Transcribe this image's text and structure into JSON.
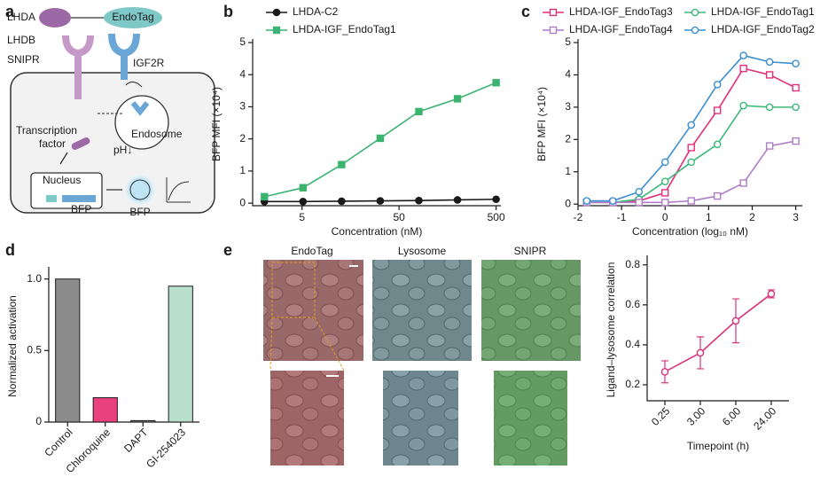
{
  "diagram": {
    "panel": "a",
    "ligand": "LHDA",
    "tag": "EndoTag",
    "receptor_part": "LHDB",
    "receptor": "SNIPR",
    "tag_receptor": "IGF2R",
    "tf_line1": "Transcription",
    "tf_line2": "factor",
    "endosome": "Endosome",
    "ph": "pH↓",
    "nucleus": "Nucleus",
    "gene": "BFP",
    "protein": "BFP"
  },
  "images": {
    "panel": "e",
    "labels": [
      "EndoTag",
      "Lysosome",
      "SNIPR"
    ]
  },
  "chart_data": [
    {
      "type": "line",
      "panel": "b",
      "xlabel": "Concentration (nM)",
      "ylabel": "BFP MFI (×10⁴)",
      "xscale": "log",
      "x": [
        2.05,
        5.12,
        12.8,
        32,
        80,
        200,
        500
      ],
      "xlim": [
        1.55,
        560
      ],
      "xticks": [
        5,
        50,
        500
      ],
      "ylim": [
        -0.08,
        5
      ],
      "yticks": [
        0,
        1,
        2,
        3,
        4,
        5
      ],
      "legend": "top-left",
      "open_markers": false,
      "series": [
        {
          "name": "LHDA-C2",
          "color": "#1a1a1a",
          "marker": "circle",
          "values": [
            0.05,
            0.05,
            0.06,
            0.07,
            0.08,
            0.1,
            0.12
          ]
        },
        {
          "name": "LHDA-IGF_EndoTag1",
          "color": "#3cb371",
          "marker": "square",
          "values": [
            0.2,
            0.48,
            1.2,
            2.02,
            2.85,
            3.25,
            3.75
          ]
        }
      ]
    },
    {
      "type": "line",
      "panel": "c",
      "xlabel": "Concentration (log₁₀ nM)",
      "ylabel": "BFP MFI (×10⁴)",
      "x": [
        -1.8,
        -1.2,
        -0.6,
        0,
        0.6,
        1.2,
        1.8,
        2.4,
        3.0
      ],
      "xlim": [
        -2,
        3.15
      ],
      "xticks": [
        -2,
        -1,
        0,
        1,
        2,
        3
      ],
      "ylim": [
        -0.05,
        5
      ],
      "yticks": [
        0,
        1,
        2,
        3,
        4,
        5
      ],
      "legend": "top",
      "open_markers": true,
      "series": [
        {
          "name": "LHDA-IGF_EndoTag3",
          "color": "#e0307a",
          "marker": "square",
          "values": [
            0.05,
            0.05,
            0.1,
            0.35,
            1.75,
            2.9,
            4.2,
            4.0,
            3.6
          ]
        },
        {
          "name": "LHDA-IGF_EndoTag1",
          "color": "#3cb878",
          "marker": "circle",
          "values": [
            0.05,
            0.05,
            0.15,
            0.7,
            1.3,
            1.85,
            3.05,
            3.0,
            3.0
          ]
        },
        {
          "name": "LHDA-IGF_EndoTag4",
          "color": "#b07cc6",
          "marker": "square",
          "values": [
            0.05,
            0.05,
            0.05,
            0.05,
            0.1,
            0.25,
            0.65,
            1.8,
            1.95
          ]
        },
        {
          "name": "LHDA-IGF_EndoTag2",
          "color": "#3a8ed0",
          "marker": "circle",
          "values": [
            0.1,
            0.1,
            0.38,
            1.3,
            2.45,
            3.7,
            4.6,
            4.4,
            4.35
          ]
        }
      ]
    },
    {
      "type": "bar",
      "panel": "d",
      "ylabel": "Normalized activation",
      "categories": [
        "Control",
        "Chloroquine",
        "DAPT",
        "GI-254023"
      ],
      "values": [
        1.0,
        0.17,
        0.01,
        0.95
      ],
      "colors": [
        "#8c8c8c",
        "#e8417d",
        "#8c8c8c",
        "#b9e0cc"
      ],
      "ylim": [
        0,
        1.06
      ],
      "yticks": [
        0,
        0.5,
        {
          "value": 1,
          "label": "1.0"
        }
      ]
    },
    {
      "type": "line",
      "xlabel": "Timepoint (h)",
      "ylabel": "Ligand–lysosome correlation",
      "open_markers": true,
      "categories": [
        "0.25",
        "3.00",
        "6.00",
        "24.00"
      ],
      "ylim": [
        0.12,
        0.83
      ],
      "yticks": [
        0.2,
        0.4,
        0.6,
        0.8
      ],
      "series": [
        {
          "color": "#d6337a",
          "marker": "circle",
          "values": [
            0.265,
            0.36,
            0.52,
            0.655
          ],
          "errors": [
            0.055,
            0.08,
            0.11,
            0.02
          ]
        }
      ]
    }
  ]
}
